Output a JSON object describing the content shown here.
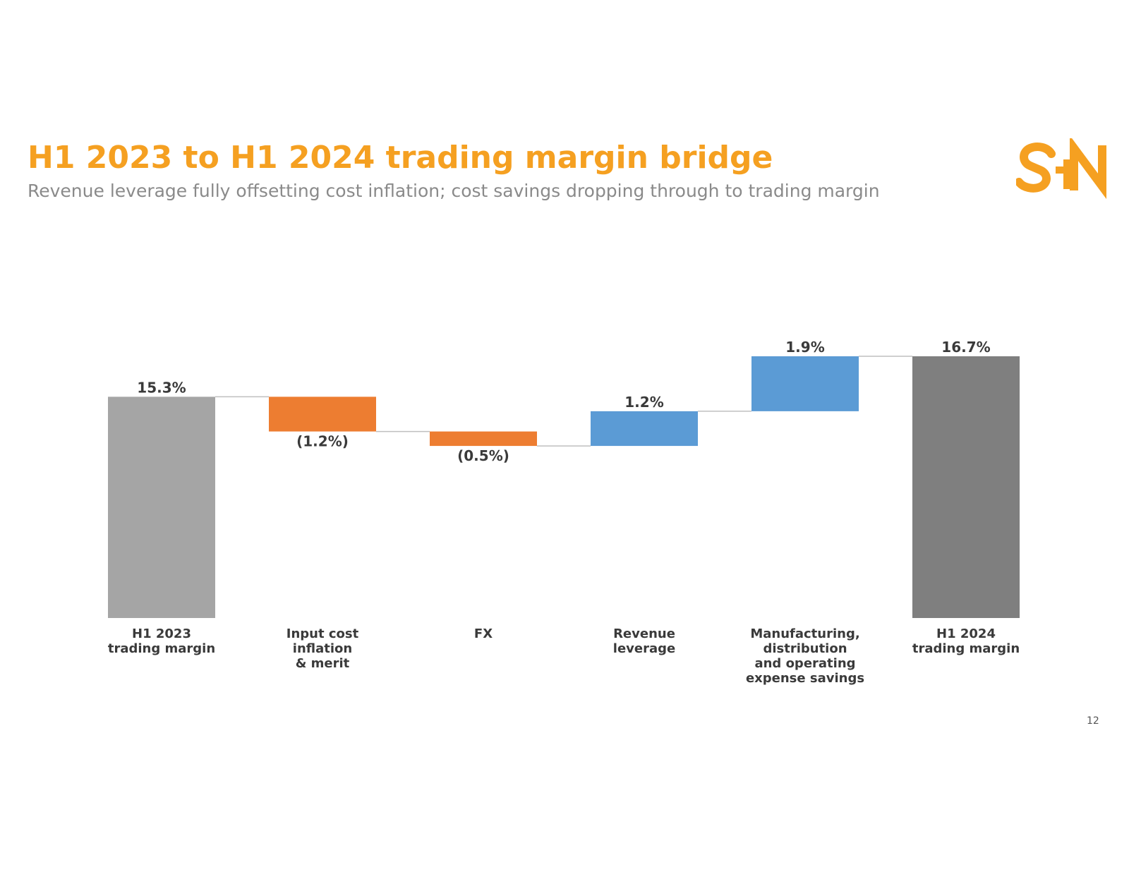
{
  "slide": {
    "title": "H1 2023 to H1 2024 trading margin bridge",
    "subtitle": "Revenue leverage fully offsetting cost inflation; cost savings dropping through to trading margin",
    "page_number": "12",
    "logo_text": "S+N",
    "brand_color": "#F5A021"
  },
  "chart_data": {
    "type": "bar",
    "subtype": "waterfall",
    "categories": [
      [
        "H1 2023",
        "trading margin"
      ],
      [
        "Input cost",
        "inflation",
        "& merit"
      ],
      [
        "FX"
      ],
      [
        "Revenue",
        "leverage"
      ],
      [
        "Manufacturing,",
        "distribution",
        "and operating",
        "expense savings"
      ],
      [
        "H1 2024",
        "trading margin"
      ]
    ],
    "steps": [
      {
        "kind": "total",
        "value": 15.3,
        "label": "15.3%",
        "color": "#A5A5A5"
      },
      {
        "kind": "delta",
        "value": -1.2,
        "label": "(1.2%)",
        "color": "#ED7D31"
      },
      {
        "kind": "delta",
        "value": -0.5,
        "label": "(0.5%)",
        "color": "#ED7D31"
      },
      {
        "kind": "delta",
        "value": 1.2,
        "label": "1.2%",
        "color": "#5B9BD5"
      },
      {
        "kind": "delta",
        "value": 1.9,
        "label": "1.9%",
        "color": "#5B9BD5"
      },
      {
        "kind": "total",
        "value": 16.7,
        "label": "16.7%",
        "color": "#7F7F7F"
      }
    ],
    "axis_min": 7.65,
    "axis_max": 16.7,
    "grid": false,
    "legend": "none",
    "connector_color": "#BFBFBF"
  }
}
